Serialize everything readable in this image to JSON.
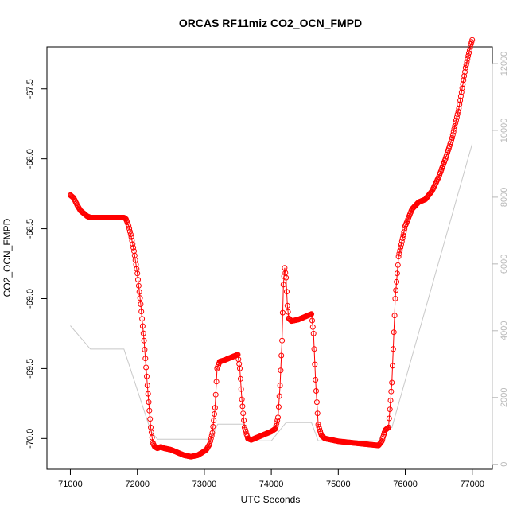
{
  "chart_data": {
    "type": "line",
    "title": "ORCAS RF11miz CO2_OCN_FMPD",
    "xlabel": "UTC Seconds",
    "ylabel": "CO2_OCN_FMPD",
    "x_ticks": [
      "71000",
      "72000",
      "73000",
      "74000",
      "75000",
      "76000",
      "77000"
    ],
    "y_ticks": [
      "-70.0",
      "-69.5",
      "-69.0",
      "-68.5",
      "-68.0",
      "-67.5"
    ],
    "y2_ticks": [
      "0",
      "2000",
      "4000",
      "6000",
      "8000",
      "10000",
      "12000"
    ],
    "xlim": [
      70650,
      77300
    ],
    "ylim": [
      -70.22,
      -67.2
    ],
    "y2lim": [
      -150,
      12500
    ],
    "grid": false,
    "colors": {
      "primary": "#ff0000",
      "secondary": "#c8c8c8",
      "frame": "#000000",
      "right_axis": "#b8b8b8"
    },
    "series": [
      {
        "role": "primary",
        "marker": "open-circle",
        "color": "#ff0000",
        "points": [
          [
            71000,
            -68.26
          ],
          [
            71050,
            -68.28
          ],
          [
            71100,
            -68.33
          ],
          [
            71150,
            -68.37
          ],
          [
            71200,
            -68.39
          ],
          [
            71250,
            -68.41
          ],
          [
            71300,
            -68.42
          ],
          [
            71400,
            -68.42
          ],
          [
            71500,
            -68.42
          ],
          [
            71600,
            -68.42
          ],
          [
            71700,
            -68.42
          ],
          [
            71800,
            -68.42
          ],
          [
            71830,
            -68.43
          ],
          [
            71870,
            -68.48
          ],
          [
            71910,
            -68.56
          ],
          [
            71950,
            -68.66
          ],
          [
            72000,
            -68.82
          ],
          [
            72050,
            -69.04
          ],
          [
            72100,
            -69.3
          ],
          [
            72150,
            -69.62
          ],
          [
            72200,
            -69.92
          ],
          [
            72230,
            -70.03
          ],
          [
            72260,
            -70.06
          ],
          [
            72300,
            -70.07
          ],
          [
            72350,
            -70.06
          ],
          [
            72400,
            -70.07
          ],
          [
            72500,
            -70.08
          ],
          [
            72600,
            -70.1
          ],
          [
            72700,
            -70.12
          ],
          [
            72800,
            -70.13
          ],
          [
            72900,
            -70.12
          ],
          [
            72970,
            -70.1
          ],
          [
            73030,
            -70.08
          ],
          [
            73080,
            -70.04
          ],
          [
            73120,
            -69.96
          ],
          [
            73160,
            -69.78
          ],
          [
            73190,
            -69.5
          ],
          [
            73230,
            -69.45
          ],
          [
            73300,
            -69.44
          ],
          [
            73400,
            -69.42
          ],
          [
            73500,
            -69.4
          ],
          [
            73530,
            -69.5
          ],
          [
            73560,
            -69.72
          ],
          [
            73600,
            -69.92
          ],
          [
            73650,
            -70.0
          ],
          [
            73700,
            -70.01
          ],
          [
            73800,
            -69.99
          ],
          [
            73900,
            -69.97
          ],
          [
            74000,
            -69.95
          ],
          [
            74060,
            -69.93
          ],
          [
            74100,
            -69.85
          ],
          [
            74130,
            -69.62
          ],
          [
            74160,
            -69.3
          ],
          [
            74180,
            -68.9
          ],
          [
            74200,
            -68.78
          ],
          [
            74220,
            -68.85
          ],
          [
            74240,
            -69.05
          ],
          [
            74260,
            -69.14
          ],
          [
            74300,
            -69.16
          ],
          [
            74400,
            -69.15
          ],
          [
            74500,
            -69.13
          ],
          [
            74600,
            -69.11
          ],
          [
            74630,
            -69.25
          ],
          [
            74660,
            -69.58
          ],
          [
            74700,
            -69.9
          ],
          [
            74750,
            -69.98
          ],
          [
            74800,
            -70.0
          ],
          [
            74900,
            -70.01
          ],
          [
            75000,
            -70.02
          ],
          [
            75200,
            -70.03
          ],
          [
            75400,
            -70.04
          ],
          [
            75600,
            -70.05
          ],
          [
            75650,
            -70.02
          ],
          [
            75700,
            -69.94
          ],
          [
            75750,
            -69.92
          ],
          [
            75800,
            -69.6
          ],
          [
            75850,
            -69.0
          ],
          [
            75900,
            -68.7
          ],
          [
            76000,
            -68.48
          ],
          [
            76100,
            -68.36
          ],
          [
            76200,
            -68.31
          ],
          [
            76300,
            -68.29
          ],
          [
            76400,
            -68.23
          ],
          [
            76500,
            -68.13
          ],
          [
            76600,
            -68.0
          ],
          [
            76700,
            -67.85
          ],
          [
            76800,
            -67.64
          ],
          [
            76900,
            -67.35
          ],
          [
            76980,
            -67.18
          ],
          [
            77000,
            -67.15
          ]
        ]
      },
      {
        "role": "secondary-axis",
        "color": "#c8c8c8",
        "points": [
          [
            71000,
            4150
          ],
          [
            71300,
            3450
          ],
          [
            71800,
            3450
          ],
          [
            72200,
            1000
          ],
          [
            72300,
            750
          ],
          [
            73100,
            750
          ],
          [
            73200,
            1200
          ],
          [
            73600,
            1200
          ],
          [
            73700,
            700
          ],
          [
            74000,
            700
          ],
          [
            74220,
            1250
          ],
          [
            74600,
            1250
          ],
          [
            74700,
            700
          ],
          [
            75600,
            700
          ],
          [
            75700,
            1100
          ],
          [
            75800,
            1100
          ],
          [
            77000,
            9600
          ]
        ]
      }
    ]
  }
}
